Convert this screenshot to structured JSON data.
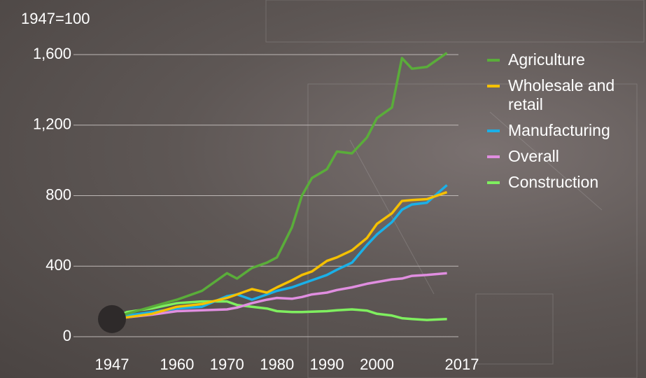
{
  "chart_data": {
    "type": "line",
    "y_label": "1947=100",
    "x": [
      1947,
      1950,
      1955,
      1960,
      1965,
      1970,
      1972,
      1975,
      1978,
      1980,
      1983,
      1985,
      1987,
      1990,
      1992,
      1995,
      1998,
      2000,
      2003,
      2005,
      2007,
      2010,
      2014
    ],
    "series": [
      {
        "name": "Agriculture",
        "color": "#5aad3a",
        "values": [
          100,
          130,
          170,
          210,
          260,
          360,
          330,
          390,
          420,
          450,
          620,
          800,
          900,
          950,
          1050,
          1040,
          1130,
          1240,
          1300,
          1580,
          1520,
          1530,
          1610
        ]
      },
      {
        "name": "Wholesale and retail",
        "color": "#f5c000",
        "values": [
          100,
          110,
          130,
          170,
          185,
          220,
          240,
          270,
          250,
          280,
          320,
          350,
          370,
          430,
          450,
          490,
          560,
          640,
          700,
          770,
          775,
          780,
          820
        ]
      },
      {
        "name": "Manufacturing",
        "color": "#1ab0e8",
        "values": [
          100,
          120,
          140,
          160,
          170,
          230,
          240,
          210,
          240,
          260,
          280,
          300,
          320,
          350,
          380,
          420,
          520,
          580,
          650,
          720,
          750,
          760,
          860
        ]
      },
      {
        "name": "Overall",
        "color": "#e08ee0",
        "values": [
          100,
          110,
          125,
          145,
          150,
          155,
          165,
          190,
          210,
          220,
          215,
          225,
          240,
          250,
          265,
          280,
          300,
          310,
          325,
          330,
          345,
          350,
          360
        ]
      },
      {
        "name": "Construction",
        "color": "#7fef5f",
        "values": [
          100,
          140,
          160,
          190,
          200,
          200,
          180,
          170,
          160,
          145,
          140,
          140,
          142,
          145,
          150,
          155,
          148,
          130,
          120,
          105,
          100,
          95,
          100
        ]
      }
    ],
    "xlim": [
      1947,
      2017
    ],
    "xticks": [
      1947,
      1960,
      1970,
      1980,
      1990,
      2000,
      2017
    ],
    "ylim": [
      0,
      1600
    ],
    "yticks": [
      0,
      400,
      800,
      {
        "value": 1200,
        "label": "1,200"
      },
      {
        "value": 1600,
        "label": "1,600"
      }
    ],
    "grid": true
  }
}
